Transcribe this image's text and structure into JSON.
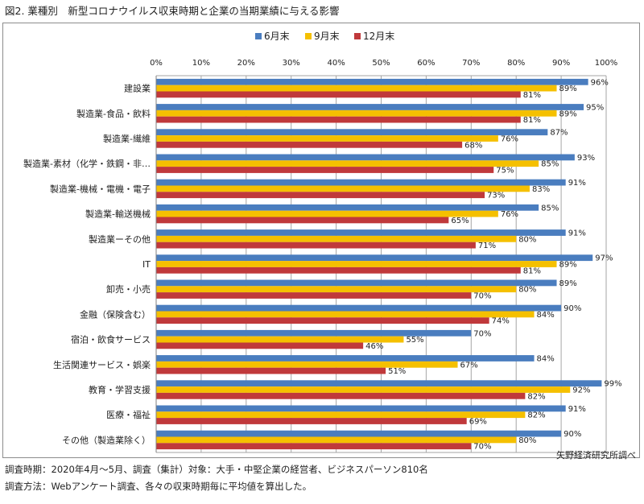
{
  "figure": {
    "title": "図2. 業種別　新型コロナウイルス収束時期と企業の当期業績に与える影響",
    "source": "矢野経済研究所調べ",
    "notes": [
      "調査時期：2020年4月～5月、調査（集計）対象：大手・中堅企業の経営者、ビジネスパーソン810名",
      "調査方法：Webアンケート調査、各々の収束時期毎に平均値を算出した。"
    ]
  },
  "chart_data": {
    "type": "bar",
    "orientation": "horizontal",
    "title": "",
    "xlabel": "",
    "ylabel": "",
    "xlim": [
      0,
      100
    ],
    "x_ticks": [
      "0%",
      "10%",
      "20%",
      "30%",
      "40%",
      "50%",
      "60%",
      "70%",
      "80%",
      "90%",
      "100%"
    ],
    "grid": true,
    "legend_position": "top-center",
    "categories": [
      "建設業",
      "製造業-食品・飲料",
      "製造業-繊維",
      "製造業-素材（化学・鉄鋼・非…",
      "製造業-機械・電機・電子",
      "製造業-輸送機械",
      "製造業ーその他",
      "IT",
      "卸売・小売",
      "金融（保険含む）",
      "宿泊・飲食サービス",
      "生活関連サービス・娯楽",
      "教育・学習支援",
      "医療・福祉",
      "その他（製造業除く）"
    ],
    "series": [
      {
        "name": "6月末",
        "color": "#4a7dbf",
        "values": [
          96,
          95,
          87,
          93,
          91,
          85,
          91,
          97,
          89,
          90,
          70,
          84,
          99,
          91,
          90
        ]
      },
      {
        "name": "9月末",
        "color": "#f5c000",
        "values": [
          89,
          89,
          76,
          85,
          83,
          76,
          80,
          89,
          80,
          84,
          55,
          67,
          92,
          82,
          80
        ]
      },
      {
        "name": "12月末",
        "color": "#c0393b",
        "values": [
          81,
          81,
          68,
          75,
          73,
          65,
          71,
          81,
          70,
          74,
          46,
          51,
          82,
          69,
          70
        ]
      }
    ]
  }
}
